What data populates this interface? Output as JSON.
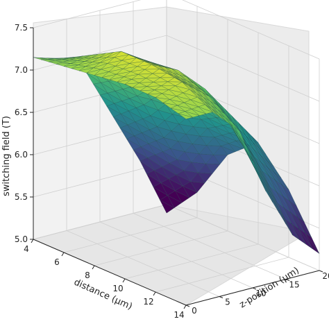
{
  "chart_data": {
    "type": "surface3d",
    "xlabel": "distance (μm)",
    "ylabel": "z-position (μm)",
    "zlabel": "switching field (T)",
    "xlim": [
      4,
      14
    ],
    "ylim": [
      0,
      20
    ],
    "zlim": [
      5.0,
      7.5
    ],
    "x_ticks": [
      4,
      6,
      8,
      10,
      12,
      14
    ],
    "y_ticks": [
      0,
      5,
      10,
      15,
      20
    ],
    "z_ticks": [
      "5.0",
      "5.5",
      "6.0",
      "6.5",
      "7.0",
      "7.5"
    ],
    "grid": true,
    "colormap": "viridis",
    "x": [
      4,
      6,
      8,
      10,
      12,
      14
    ],
    "y": [
      0,
      4,
      8,
      12,
      16,
      20
    ],
    "z": [
      [
        7.15,
        7.2,
        7.25,
        7.3,
        7.3,
        7.2
      ],
      [
        7.05,
        7.25,
        7.45,
        7.45,
        7.4,
        7.2
      ],
      [
        6.8,
        7.0,
        7.25,
        7.3,
        7.15,
        6.9
      ],
      [
        6.2,
        6.5,
        6.9,
        7.0,
        6.7,
        6.1
      ],
      [
        5.6,
        5.9,
        6.4,
        6.6,
        6.1,
        5.5
      ],
      [
        4.9,
        5.3,
        5.9,
        6.2,
        5.8,
        5.2
      ]
    ]
  }
}
